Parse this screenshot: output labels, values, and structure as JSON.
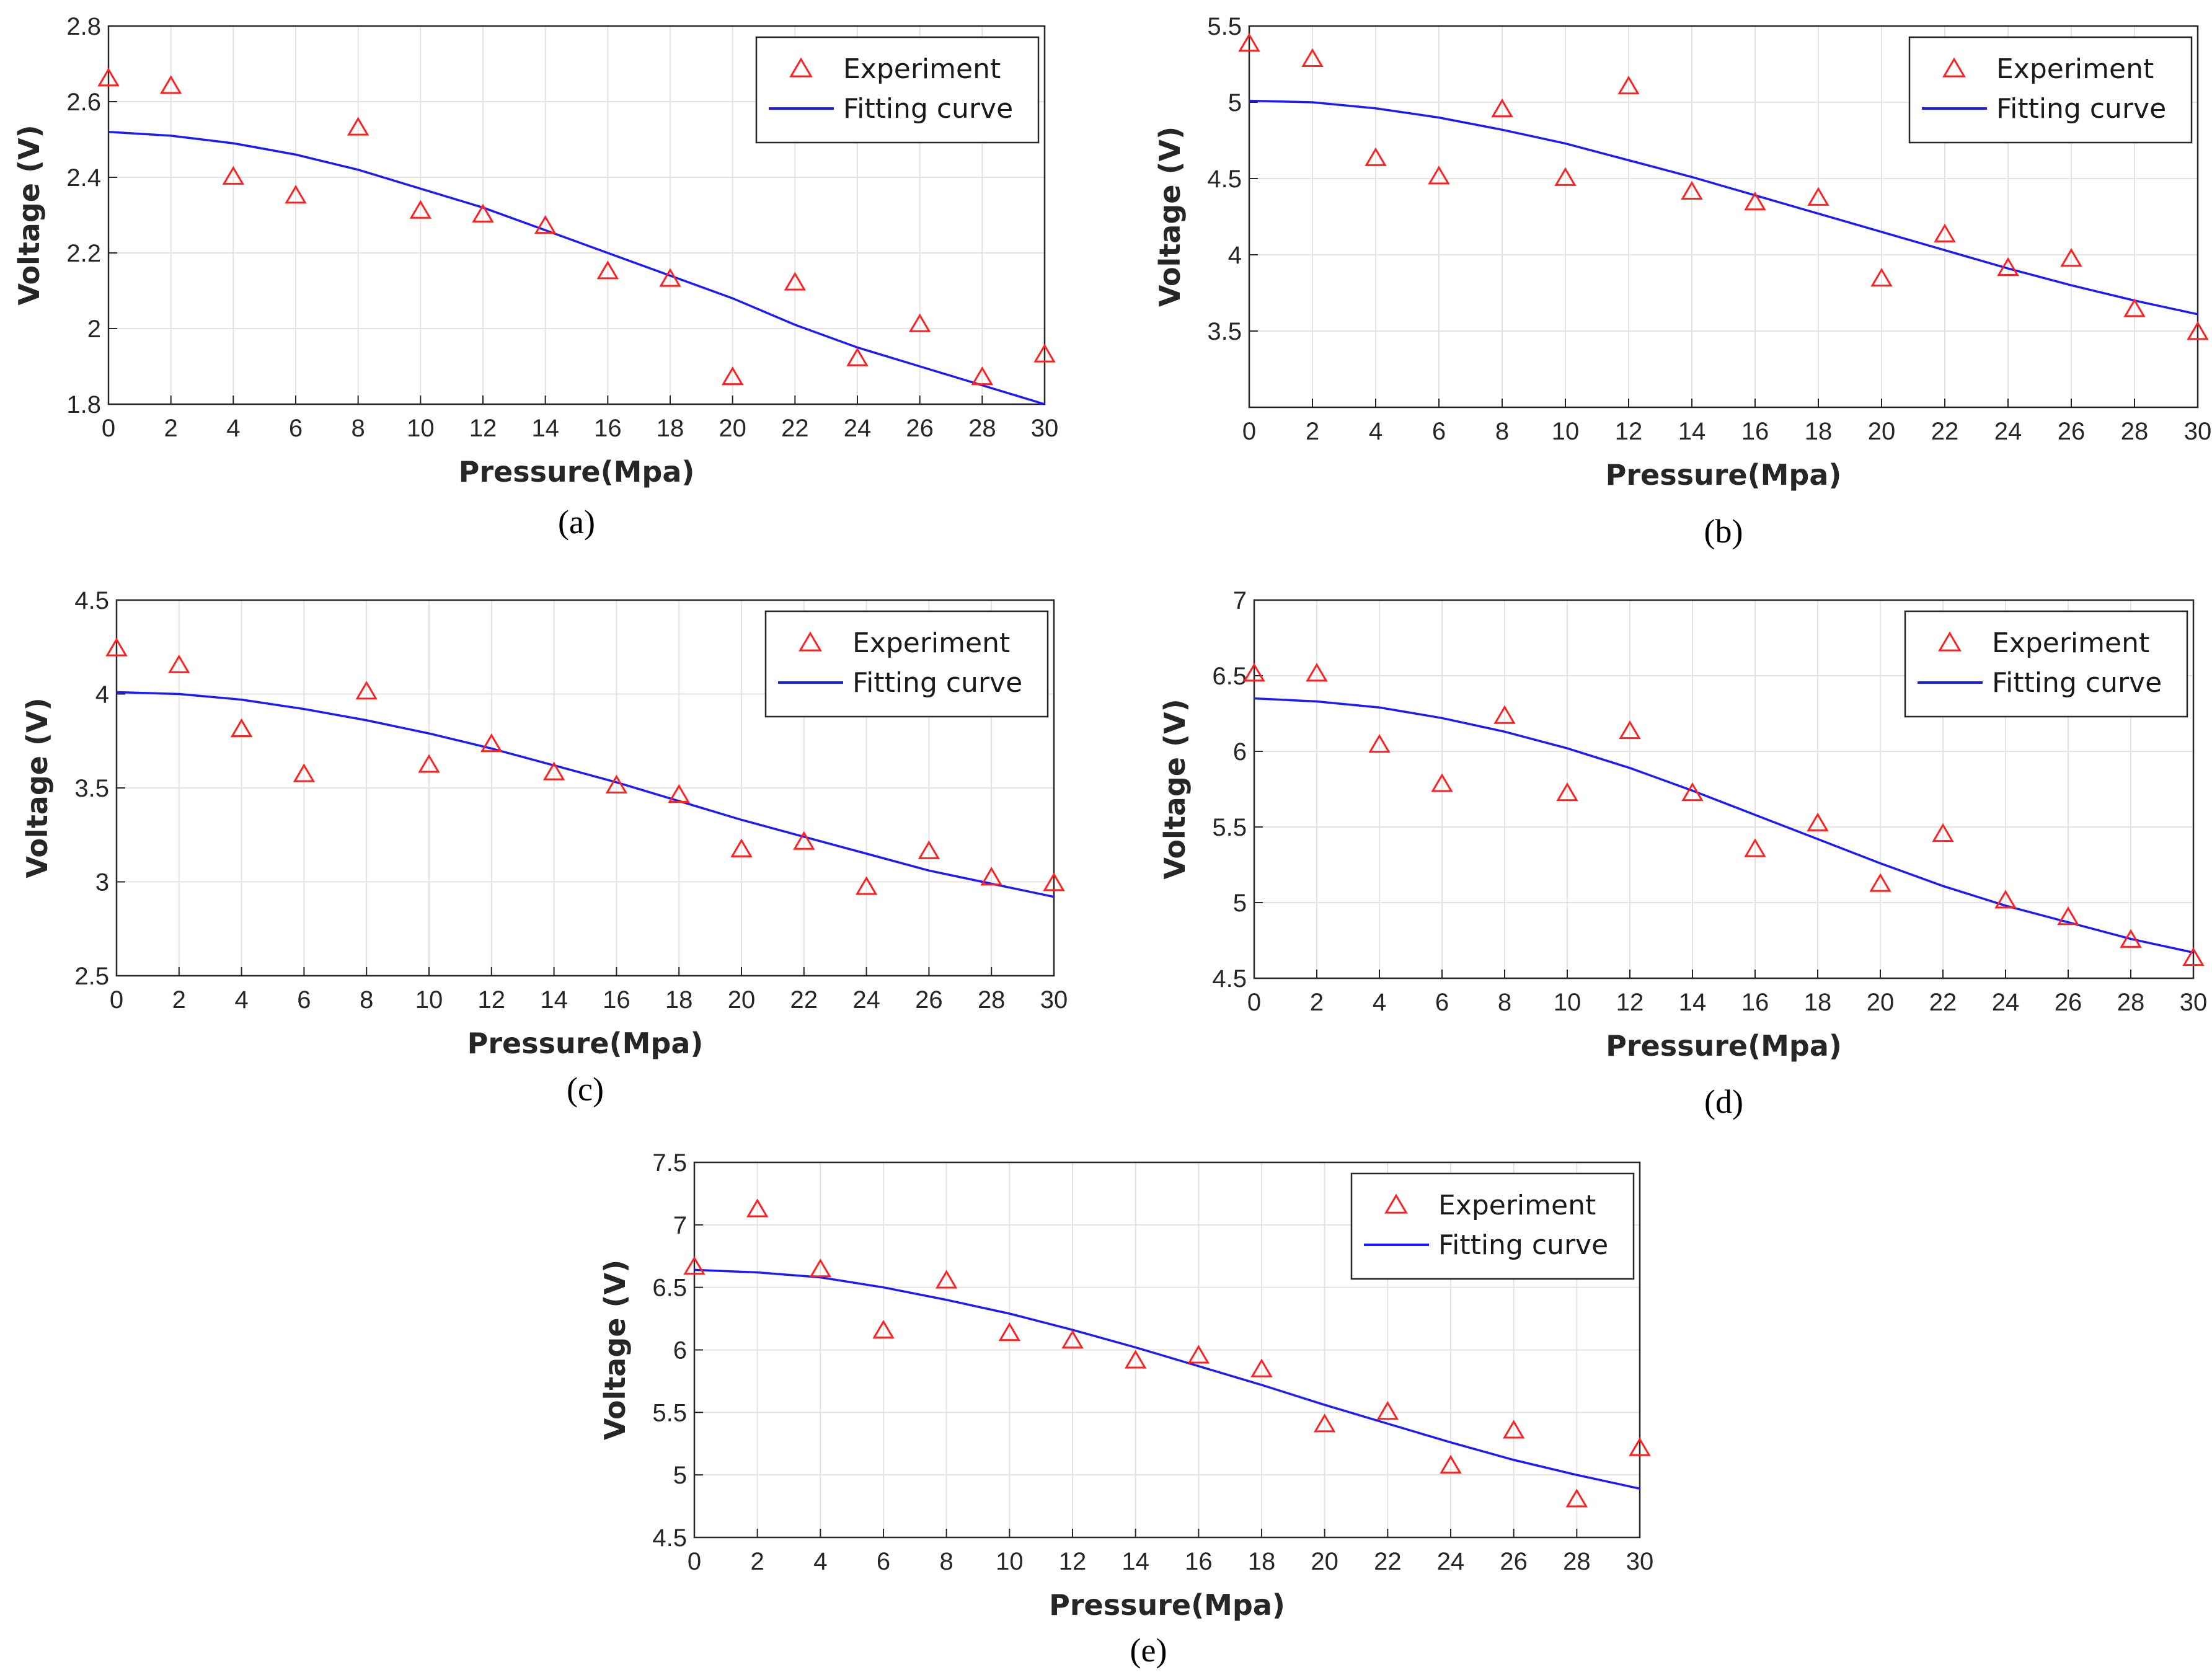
{
  "figure": {
    "legend_position": "top-right",
    "x_label": "Pressure(Mpa)",
    "y_label": "Voltage (V)",
    "legend_labels": [
      "Experiment",
      "Fitting curve"
    ],
    "colors": {
      "experiment": "#ff2020",
      "fit": "#1a1aff",
      "grid": "#e3e3e3",
      "axis": "#262626"
    }
  },
  "chart_data": [
    {
      "type": "scatter",
      "caption": "(a)",
      "xlabel": "Pressure(Mpa)",
      "ylabel": "Voltage (V)",
      "xlim": [
        0,
        30
      ],
      "ylim": [
        1.8,
        2.8
      ],
      "xticks": [
        0,
        2,
        4,
        6,
        8,
        10,
        12,
        14,
        16,
        18,
        20,
        22,
        24,
        26,
        28,
        30
      ],
      "yticks": [
        1.8,
        2,
        2.2,
        2.4,
        2.6,
        2.8
      ],
      "ytick_labels": [
        "1.8",
        "2",
        "2.2",
        "2.4",
        "2.6",
        "2.8"
      ],
      "grid": true,
      "legend": [
        "Experiment",
        "Fitting curve"
      ],
      "series": [
        {
          "name": "Experiment",
          "marker": "triangle",
          "x": [
            0,
            2,
            4,
            6,
            8,
            10,
            12,
            14,
            16,
            18,
            20,
            22,
            24,
            26,
            28,
            30
          ],
          "y": [
            2.66,
            2.64,
            2.4,
            2.35,
            2.53,
            2.31,
            2.3,
            2.27,
            2.15,
            2.13,
            1.87,
            2.12,
            1.92,
            2.01,
            1.87,
            1.93
          ]
        },
        {
          "name": "Fitting curve",
          "line": true,
          "x": [
            0,
            2,
            4,
            6,
            8,
            10,
            12,
            14,
            16,
            18,
            20,
            22,
            24,
            26,
            28,
            30
          ],
          "y": [
            2.52,
            2.51,
            2.49,
            2.46,
            2.42,
            2.37,
            2.32,
            2.26,
            2.2,
            2.14,
            2.08,
            2.01,
            1.95,
            1.9,
            1.85,
            1.8
          ]
        }
      ]
    },
    {
      "type": "scatter",
      "caption": "(b)",
      "xlabel": "Pressure(Mpa)",
      "ylabel": "Voltage (V)",
      "xlim": [
        0,
        30
      ],
      "ylim": [
        3.0,
        5.5
      ],
      "xticks": [
        0,
        2,
        4,
        6,
        8,
        10,
        12,
        14,
        16,
        18,
        20,
        22,
        24,
        26,
        28,
        30
      ],
      "yticks": [
        3.5,
        4,
        4.5,
        5,
        5.5
      ],
      "ytick_labels": [
        "3.5",
        "4",
        "4.5",
        "5",
        "5.5"
      ],
      "grid": true,
      "legend": [
        "Experiment",
        "Fitting curve"
      ],
      "series": [
        {
          "name": "Experiment",
          "marker": "triangle",
          "x": [
            0,
            2,
            4,
            6,
            8,
            10,
            12,
            14,
            16,
            18,
            20,
            22,
            24,
            26,
            28,
            30
          ],
          "y": [
            5.38,
            5.28,
            4.63,
            4.51,
            4.95,
            4.5,
            5.1,
            4.41,
            4.34,
            4.37,
            3.84,
            4.13,
            3.91,
            3.97,
            3.64,
            3.49
          ]
        },
        {
          "name": "Fitting curve",
          "line": true,
          "x": [
            0,
            2,
            4,
            6,
            8,
            10,
            12,
            14,
            16,
            18,
            20,
            22,
            24,
            26,
            28,
            30
          ],
          "y": [
            5.01,
            5.0,
            4.96,
            4.9,
            4.82,
            4.73,
            4.62,
            4.51,
            4.39,
            4.27,
            4.15,
            4.03,
            3.91,
            3.8,
            3.7,
            3.61
          ]
        }
      ]
    },
    {
      "type": "scatter",
      "caption": "(c)",
      "xlabel": "Pressure(Mpa)",
      "ylabel": "Voltage (V)",
      "xlim": [
        0,
        30
      ],
      "ylim": [
        2.5,
        4.5
      ],
      "xticks": [
        0,
        2,
        4,
        6,
        8,
        10,
        12,
        14,
        16,
        18,
        20,
        22,
        24,
        26,
        28,
        30
      ],
      "yticks": [
        2.5,
        3,
        3.5,
        4,
        4.5
      ],
      "ytick_labels": [
        "2.5",
        "3",
        "3.5",
        "4",
        "4.5"
      ],
      "grid": true,
      "legend": [
        "Experiment",
        "Fitting curve"
      ],
      "series": [
        {
          "name": "Experiment",
          "marker": "triangle",
          "x": [
            0,
            2,
            4,
            6,
            8,
            10,
            12,
            14,
            16,
            18,
            20,
            22,
            24,
            26,
            28,
            30
          ],
          "y": [
            4.24,
            4.15,
            3.81,
            3.57,
            4.01,
            3.62,
            3.73,
            3.58,
            3.51,
            3.46,
            3.17,
            3.21,
            2.97,
            3.16,
            3.02,
            2.99
          ]
        },
        {
          "name": "Fitting curve",
          "line": true,
          "x": [
            0,
            2,
            4,
            6,
            8,
            10,
            12,
            14,
            16,
            18,
            20,
            22,
            24,
            26,
            28,
            30
          ],
          "y": [
            4.01,
            4.0,
            3.97,
            3.92,
            3.86,
            3.79,
            3.71,
            3.62,
            3.53,
            3.43,
            3.33,
            3.24,
            3.15,
            3.06,
            2.99,
            2.92
          ]
        }
      ]
    },
    {
      "type": "scatter",
      "caption": "(d)",
      "xlabel": "Pressure(Mpa)",
      "ylabel": "Voltage (V)",
      "xlim": [
        0,
        30
      ],
      "ylim": [
        4.5,
        7.0
      ],
      "xticks": [
        0,
        2,
        4,
        6,
        8,
        10,
        12,
        14,
        16,
        18,
        20,
        22,
        24,
        26,
        28,
        30
      ],
      "yticks": [
        4.5,
        5,
        5.5,
        6,
        6.5,
        7
      ],
      "ytick_labels": [
        "4.5",
        "5",
        "5.5",
        "6",
        "6.5",
        "7"
      ],
      "grid": true,
      "legend": [
        "Experiment",
        "Fitting curve"
      ],
      "series": [
        {
          "name": "Experiment",
          "marker": "triangle",
          "x": [
            0,
            2,
            4,
            6,
            8,
            10,
            12,
            14,
            16,
            18,
            20,
            22,
            24,
            26,
            28,
            30
          ],
          "y": [
            6.51,
            6.51,
            6.04,
            5.78,
            6.23,
            5.72,
            6.13,
            5.72,
            5.35,
            5.52,
            5.12,
            5.45,
            5.01,
            4.9,
            4.75,
            4.63
          ]
        },
        {
          "name": "Fitting curve",
          "line": true,
          "x": [
            0,
            2,
            4,
            6,
            8,
            10,
            12,
            14,
            16,
            18,
            20,
            22,
            24,
            26,
            28,
            30
          ],
          "y": [
            6.35,
            6.33,
            6.29,
            6.22,
            6.13,
            6.02,
            5.89,
            5.74,
            5.58,
            5.42,
            5.26,
            5.11,
            4.98,
            4.87,
            4.76,
            4.67
          ]
        }
      ]
    },
    {
      "type": "scatter",
      "caption": "(e)",
      "xlabel": "Pressure(Mpa)",
      "ylabel": "Voltage (V)",
      "xlim": [
        0,
        30
      ],
      "ylim": [
        4.5,
        7.5
      ],
      "xticks": [
        0,
        2,
        4,
        6,
        8,
        10,
        12,
        14,
        16,
        18,
        20,
        22,
        24,
        26,
        28,
        30
      ],
      "yticks": [
        4.5,
        5,
        5.5,
        6,
        6.5,
        7,
        7.5
      ],
      "ytick_labels": [
        "4.5",
        "5",
        "5.5",
        "6",
        "6.5",
        "7",
        "7.5"
      ],
      "grid": true,
      "legend": [
        "Experiment",
        "Fitting curve"
      ],
      "series": [
        {
          "name": "Experiment",
          "marker": "triangle",
          "x": [
            0,
            2,
            4,
            6,
            8,
            10,
            12,
            14,
            16,
            18,
            20,
            22,
            24,
            26,
            28,
            30
          ],
          "y": [
            6.66,
            7.12,
            6.64,
            6.15,
            6.55,
            6.13,
            6.07,
            5.91,
            5.95,
            5.84,
            5.4,
            5.5,
            5.07,
            5.35,
            4.8,
            5.21
          ]
        },
        {
          "name": "Fitting curve",
          "line": true,
          "x": [
            0,
            2,
            4,
            6,
            8,
            10,
            12,
            14,
            16,
            18,
            20,
            22,
            24,
            26,
            28,
            30
          ],
          "y": [
            6.64,
            6.62,
            6.58,
            6.5,
            6.4,
            6.29,
            6.16,
            6.02,
            5.87,
            5.72,
            5.56,
            5.41,
            5.26,
            5.12,
            5.0,
            4.89
          ]
        }
      ]
    }
  ]
}
